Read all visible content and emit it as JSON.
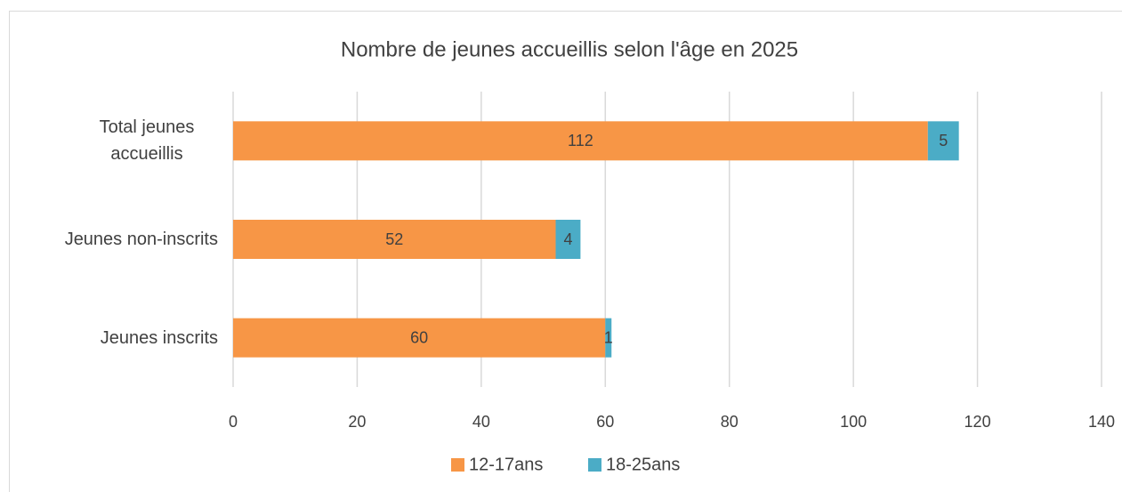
{
  "chart_data": {
    "type": "stacked_barh",
    "title": "Nombre de jeunes accueillis selon l'âge en 2025",
    "categories": [
      "Total jeunes accueillis",
      "Jeunes non-inscrits",
      "Jeunes inscrits"
    ],
    "series": [
      {
        "name": "12-17ans",
        "color": "#f79646",
        "values": [
          112,
          52,
          60
        ]
      },
      {
        "name": "18-25ans",
        "color": "#4bacc6",
        "values": [
          5,
          4,
          1
        ]
      }
    ],
    "xlim": [
      0,
      140
    ],
    "xticks": [
      0,
      20,
      40,
      60,
      80,
      100,
      120,
      140
    ],
    "grid": true,
    "legend": "bottom"
  }
}
